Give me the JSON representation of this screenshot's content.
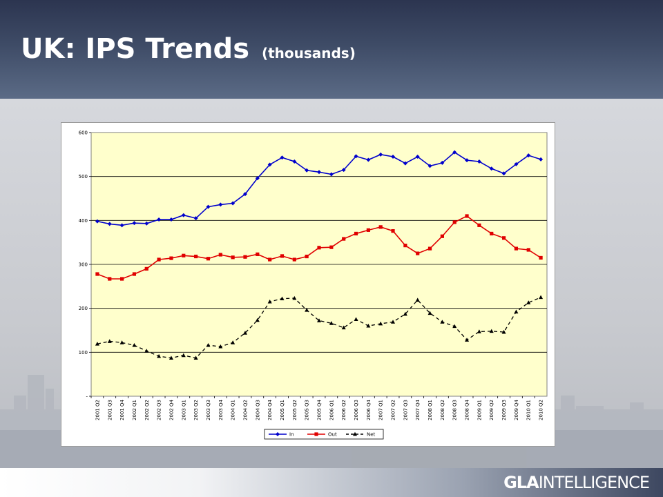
{
  "slide": {
    "title": "UK: IPS Trends",
    "subtitle": "(thousands)",
    "logo_bold": "GLA",
    "logo_rest": "INTELLIGENCE"
  },
  "colors": {
    "in": "#0000cc",
    "out": "#e00000",
    "net": "#000000",
    "plot_bg": "#ffffcc"
  },
  "chart_data": {
    "type": "line",
    "title": "",
    "xlabel": "",
    "ylabel": "",
    "ylim": [
      0,
      600
    ],
    "yticks": [
      0,
      100,
      200,
      300,
      400,
      500,
      600
    ],
    "ytick_labels": [
      "-",
      "100",
      "200",
      "300",
      "400",
      "500",
      "600"
    ],
    "grid": "horizontal",
    "legend_position": "bottom",
    "categories": [
      "2001 Q2",
      "2001 Q3",
      "2001 Q4",
      "2002 Q1",
      "2002 Q2",
      "2002 Q3",
      "2002 Q4",
      "2003 Q1",
      "2003 Q2",
      "2003 Q3",
      "2003 Q4",
      "2004 Q1",
      "2004 Q2",
      "2004 Q3",
      "2004 Q4",
      "2005 Q1",
      "2005 Q2",
      "2005 Q3",
      "2005 Q4",
      "2006 Q1",
      "2006 Q2",
      "2006 Q3",
      "2006 Q4",
      "2007 Q1",
      "2007 Q2",
      "2007 Q3",
      "2007 Q4",
      "2008 Q1",
      "2008 Q2",
      "2008 Q3",
      "2008 Q4",
      "2009 Q1",
      "2009 Q2",
      "2009 Q3",
      "2009 Q4",
      "2010 Q1",
      "2010 Q2"
    ],
    "series": [
      {
        "name": "In",
        "marker": "diamond",
        "dash": "solid",
        "values": [
          398,
          392,
          389,
          394,
          393,
          402,
          402,
          412,
          405,
          431,
          436,
          439,
          460,
          496,
          527,
          543,
          534,
          514,
          510,
          505,
          515,
          546,
          538,
          550,
          545,
          530,
          545,
          524,
          531,
          555,
          537,
          534,
          518,
          507,
          528,
          548,
          539
        ]
      },
      {
        "name": "Out",
        "marker": "square",
        "dash": "solid",
        "values": [
          278,
          267,
          267,
          278,
          290,
          311,
          314,
          320,
          318,
          313,
          322,
          316,
          317,
          323,
          311,
          319,
          311,
          318,
          338,
          339,
          358,
          370,
          378,
          385,
          376,
          343,
          325,
          336,
          364,
          396,
          410,
          389,
          370,
          360,
          336,
          333,
          315
        ]
      },
      {
        "name": "Net",
        "marker": "triangle",
        "dash": "dashed",
        "values": [
          119,
          125,
          122,
          116,
          103,
          91,
          87,
          93,
          87,
          116,
          113,
          122,
          144,
          173,
          215,
          222,
          223,
          196,
          172,
          166,
          156,
          175,
          160,
          165,
          169,
          187,
          219,
          189,
          169,
          159,
          128,
          147,
          148,
          146,
          192,
          213,
          225
        ]
      }
    ]
  }
}
